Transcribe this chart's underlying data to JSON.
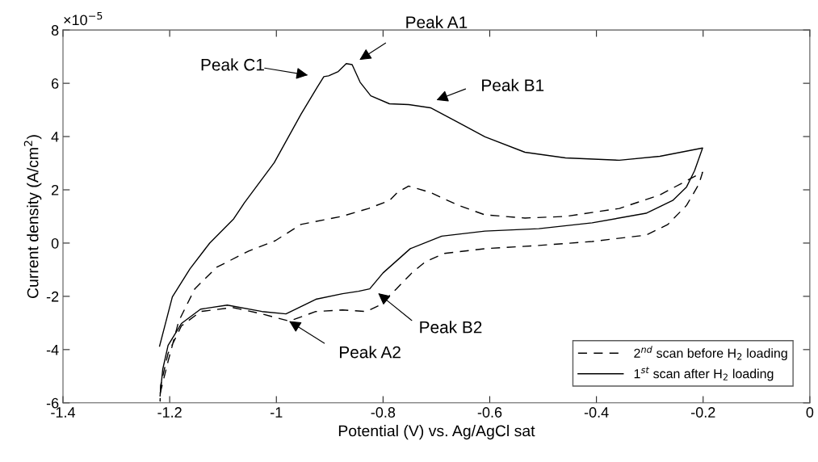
{
  "chart_data": {
    "type": "line",
    "xlabel": "Potential (V) vs. Ag/AgCl sat",
    "ylabel": "Current density (A/cm$^{2}$)",
    "annotations": [
      "×10$^{−5}$",
      "Peak C1",
      "Peak A1",
      "Peak B1",
      "Peak B2",
      {
        "text": "Peak A2",
        "x": -0.976,
        "y": -2.93
      }
    ],
    "series": [
      {
        "name": "2$^{nd}$ scan before H$_{2}$ loading",
        "color": "#000000",
        "line_style": "dashed",
        "x": [
          -1.218,
          -1.203,
          -1.183,
          -1.153,
          -1.112,
          -1.052,
          -1.002,
          -0.954,
          -0.878,
          -0.827,
          -0.788,
          -0.773,
          -0.752,
          -0.711,
          -0.659,
          -0.609,
          -0.534,
          -0.458,
          -0.357,
          -0.281,
          -0.201,
          -0.208,
          -0.231,
          -0.266,
          -0.307,
          -0.408,
          -0.508,
          -0.609,
          -0.685,
          -0.72,
          -0.746,
          -0.775,
          -0.806,
          -0.831,
          -0.876,
          -0.926,
          -0.976,
          -1.027,
          -1.082,
          -1.142,
          -1.178,
          -1.203,
          -1.217,
          -1.218
        ],
        "values": [
          -5.65,
          -4.44,
          -2.93,
          -1.72,
          -0.91,
          -0.3,
          0.09,
          0.7,
          1.0,
          1.3,
          1.6,
          1.9,
          2.14,
          1.9,
          1.42,
          1.06,
          0.94,
          1.0,
          1.3,
          1.81,
          2.66,
          2.21,
          1.42,
          0.7,
          0.3,
          0.06,
          -0.09,
          -0.21,
          -0.39,
          -0.69,
          -1.12,
          -1.72,
          -2.33,
          -2.57,
          -2.51,
          -2.57,
          -2.93,
          -2.66,
          -2.42,
          -2.57,
          -3.11,
          -4.14,
          -5.35,
          -5.95
        ]
      },
      {
        "name": "1$^{st}$ scan after H$_{2}$ loading",
        "color": "#000000",
        "line_style": "solid",
        "x": [
          -1.219,
          -1.195,
          -1.162,
          -1.125,
          -1.08,
          -1.06,
          -1.004,
          -0.954,
          -0.924,
          -0.911,
          -0.902,
          -0.884,
          -0.869,
          -0.858,
          -0.843,
          -0.823,
          -0.788,
          -0.752,
          -0.711,
          -0.659,
          -0.609,
          -0.534,
          -0.458,
          -0.357,
          -0.281,
          -0.201,
          -0.216,
          -0.231,
          -0.257,
          -0.307,
          -0.408,
          -0.508,
          -0.609,
          -0.69,
          -0.749,
          -0.8,
          -0.825,
          -0.846,
          -0.876,
          -0.926,
          -0.982,
          -1.027,
          -1.092,
          -1.142,
          -1.178,
          -1.203,
          -1.213,
          -1.218
        ],
        "values": [
          -3.87,
          -2.02,
          -0.97,
          0.0,
          0.91,
          1.51,
          3.02,
          4.83,
          5.83,
          6.25,
          6.28,
          6.44,
          6.74,
          6.7,
          6.04,
          5.53,
          5.23,
          5.2,
          5.08,
          4.53,
          3.99,
          3.41,
          3.2,
          3.11,
          3.26,
          3.57,
          2.72,
          2.11,
          1.6,
          1.12,
          0.76,
          0.54,
          0.45,
          0.26,
          -0.21,
          -1.12,
          -1.72,
          -1.81,
          -1.9,
          -2.11,
          -2.66,
          -2.57,
          -2.33,
          -2.48,
          -3.02,
          -3.84,
          -4.74,
          -5.74
        ]
      }
    ],
    "xlim": [
      -1.4,
      0
    ],
    "xticks": [
      -1.4,
      -1.2,
      -1,
      -0.8,
      -0.6,
      -0.4,
      -0.2,
      0
    ],
    "ylim": [
      -6,
      8
    ],
    "yticks": [
      -6,
      -4,
      -2,
      0,
      2,
      4,
      6,
      8
    ],
    "grid": false,
    "legend": "bottom right"
  }
}
